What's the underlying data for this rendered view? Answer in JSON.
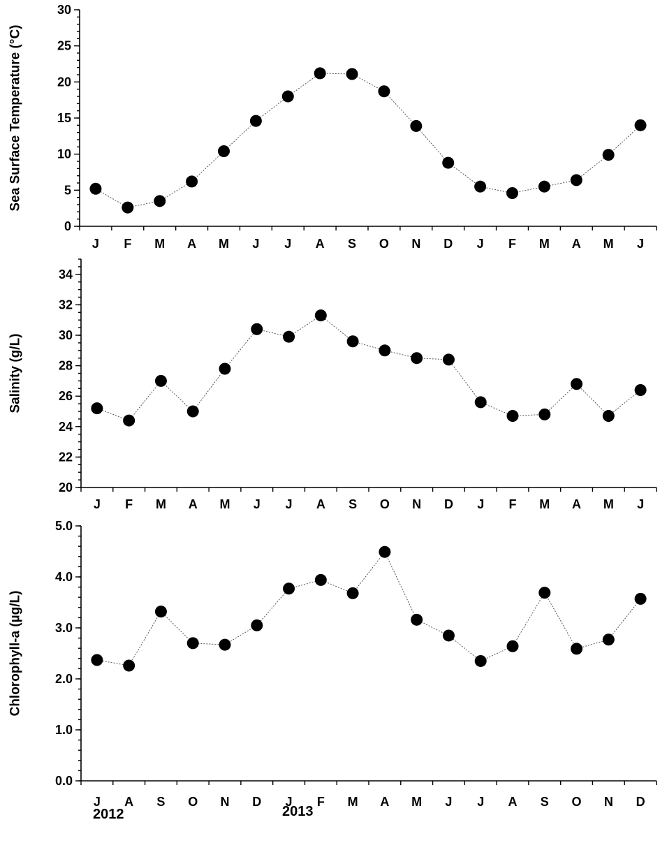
{
  "chart_data": [
    {
      "type": "line",
      "ylabel": "Sea Surface Temperature (°C)",
      "categories": [
        "J",
        "F",
        "M",
        "A",
        "M",
        "J",
        "J",
        "A",
        "S",
        "O",
        "N",
        "D",
        "J",
        "F",
        "M",
        "A",
        "M",
        "J"
      ],
      "values": [
        5.2,
        2.6,
        3.5,
        6.2,
        10.4,
        14.6,
        18.0,
        21.2,
        21.1,
        18.7,
        13.9,
        8.8,
        5.5,
        4.6,
        5.5,
        6.4,
        9.9,
        14.0
      ],
      "ylim": [
        0,
        30
      ],
      "yticks": [
        "0",
        "5",
        "10",
        "15",
        "20",
        "25",
        "30"
      ],
      "ytick_values": [
        0,
        5,
        10,
        15,
        20,
        25,
        30
      ],
      "minor_step": 1,
      "grid": false
    },
    {
      "type": "line",
      "ylabel": "Salinity (g/L)",
      "categories": [
        "J",
        "F",
        "M",
        "A",
        "M",
        "J",
        "J",
        "A",
        "S",
        "O",
        "N",
        "D",
        "J",
        "F",
        "M",
        "A",
        "M",
        "J"
      ],
      "values": [
        25.2,
        24.4,
        27.0,
        25.0,
        27.8,
        30.4,
        29.9,
        31.3,
        29.6,
        29.0,
        28.5,
        28.4,
        25.6,
        24.7,
        24.8,
        26.8,
        24.7,
        26.4
      ],
      "ylim": [
        20,
        35
      ],
      "yticks": [
        "20",
        "22",
        "24",
        "26",
        "28",
        "30",
        "32",
        "34"
      ],
      "ytick_values": [
        20,
        22,
        24,
        26,
        28,
        30,
        32,
        34
      ],
      "minor_step": 0.5,
      "grid": false
    },
    {
      "type": "line",
      "ylabel": "Chlorophyll-a (µg/L)",
      "categories": [
        "J",
        "A",
        "S",
        "O",
        "N",
        "D",
        "J",
        "F",
        "M",
        "A",
        "M",
        "J",
        "J",
        "A",
        "S",
        "O",
        "N",
        "D"
      ],
      "values": [
        2.37,
        2.26,
        3.32,
        2.7,
        2.67,
        3.05,
        3.77,
        3.94,
        3.68,
        4.49,
        3.16,
        2.85,
        2.35,
        2.64,
        3.69,
        2.59,
        2.77,
        3.57
      ],
      "ylim": [
        0,
        5
      ],
      "yticks": [
        "0.0",
        "1.0",
        "2.0",
        "3.0",
        "4.0",
        "5.0"
      ],
      "ytick_values": [
        0,
        1,
        2,
        3,
        4,
        5
      ],
      "minor_step": 0.2,
      "grid": false
    }
  ],
  "year_labels": [
    "2012",
    "2013"
  ],
  "colors": {
    "marker": "#000000",
    "line": "#555555",
    "axis": "#000000"
  }
}
